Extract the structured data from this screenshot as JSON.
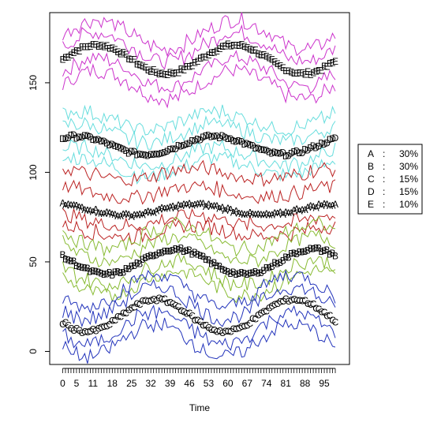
{
  "chart_data": {
    "type": "line",
    "xlabel": "Time",
    "ylabel": "",
    "xlim": [
      -1,
      101
    ],
    "ylim": [
      -2,
      183
    ],
    "y_ticks": [
      0,
      50,
      100,
      150
    ],
    "x_tick_labels": [
      "0",
      "5",
      "11",
      "18",
      "25",
      "32",
      "39",
      "46",
      "53",
      "60",
      "67",
      "74",
      "81",
      "88",
      "95"
    ],
    "x_tick_label_positions": [
      0,
      5,
      11,
      18,
      25,
      32,
      39,
      46,
      53,
      60,
      67,
      74,
      81,
      88,
      95
    ],
    "x_minor_ticks": 100,
    "grid": false,
    "legend_position": "right",
    "legend": [
      {
        "name": "A",
        "sep": ":",
        "value": "30%"
      },
      {
        "name": "B",
        "sep": ":",
        "value": "30%"
      },
      {
        "name": "C",
        "sep": ":",
        "value": "15%"
      },
      {
        "name": "D",
        "sep": ":",
        "value": "15%"
      },
      {
        "name": "E",
        "sep": ":",
        "value": "10%"
      }
    ],
    "series": [
      {
        "name": "E",
        "marker": "E",
        "color": "#cc33cc",
        "base": 163,
        "amp": 8,
        "phase": 0,
        "band_lo": -14,
        "band_hi": 14
      },
      {
        "name": "D",
        "marker": "D",
        "color": "#66dddd",
        "base": 115,
        "amp": 5,
        "phase": 1,
        "band_lo": -12,
        "band_hi": 14
      },
      {
        "name": "A",
        "marker": "A",
        "color": "#bb2222",
        "base": 79,
        "amp": 3,
        "phase": 2,
        "band_lo": -12,
        "band_hi": 20
      },
      {
        "name": "B",
        "marker": "B",
        "color": "#88bb33",
        "base": 50,
        "amp": 7,
        "phase": 3,
        "band_lo": -12,
        "band_hi": 14
      },
      {
        "name": "C",
        "marker": "C",
        "color": "#2233bb",
        "base": 20,
        "amp": 9,
        "phase": 4,
        "band_lo": -14,
        "band_hi": 14
      }
    ]
  }
}
